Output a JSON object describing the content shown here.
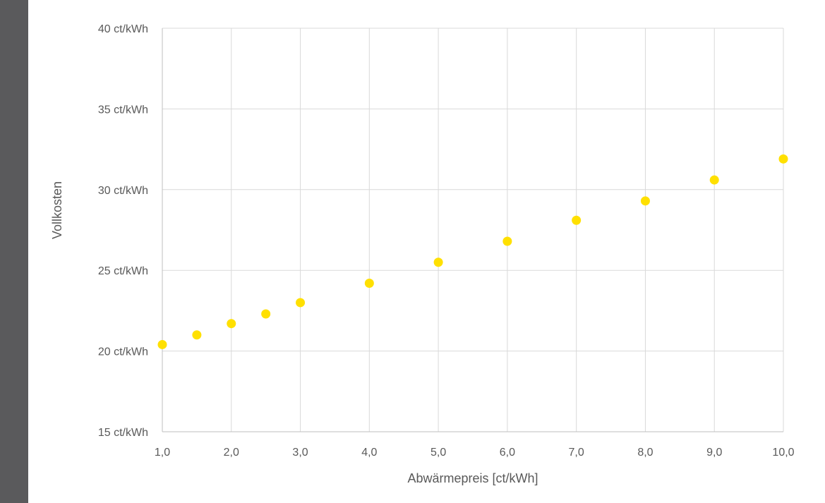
{
  "chart_data": {
    "type": "scatter",
    "title": "",
    "xlabel": "Abwärmepreis [ct/kWh]",
    "ylabel": "Vollkosten",
    "xlim": [
      1,
      10
    ],
    "ylim": [
      15,
      40
    ],
    "x_ticks": [
      1,
      2,
      3,
      4,
      5,
      6,
      7,
      8,
      9,
      10
    ],
    "x_tick_labels": [
      "1,0",
      "2,0",
      "3,0",
      "4,0",
      "5,0",
      "6,0",
      "7,0",
      "8,0",
      "9,0",
      "10,0"
    ],
    "y_ticks": [
      15,
      20,
      25,
      30,
      35,
      40
    ],
    "y_tick_labels": [
      "15 ct/kWh",
      "20 ct/kWh",
      "25 ct/kWh",
      "30 ct/kWh",
      "35 ct/kWh",
      "40 ct/kWh"
    ],
    "grid": true,
    "series": [
      {
        "color": "#ffe000",
        "points": [
          {
            "x": 1.0,
            "y": 20.4
          },
          {
            "x": 1.5,
            "y": 21.0
          },
          {
            "x": 2.0,
            "y": 21.7
          },
          {
            "x": 2.5,
            "y": 22.3
          },
          {
            "x": 3.0,
            "y": 23.0
          },
          {
            "x": 4.0,
            "y": 24.2
          },
          {
            "x": 5.0,
            "y": 25.5
          },
          {
            "x": 6.0,
            "y": 26.8
          },
          {
            "x": 7.0,
            "y": 28.1
          },
          {
            "x": 8.0,
            "y": 29.3
          },
          {
            "x": 9.0,
            "y": 30.6
          },
          {
            "x": 10.0,
            "y": 31.9
          }
        ]
      }
    ],
    "colors": {
      "gridline": "#d9d9d9",
      "axis": "#bfbfbf",
      "text": "#595959"
    }
  }
}
